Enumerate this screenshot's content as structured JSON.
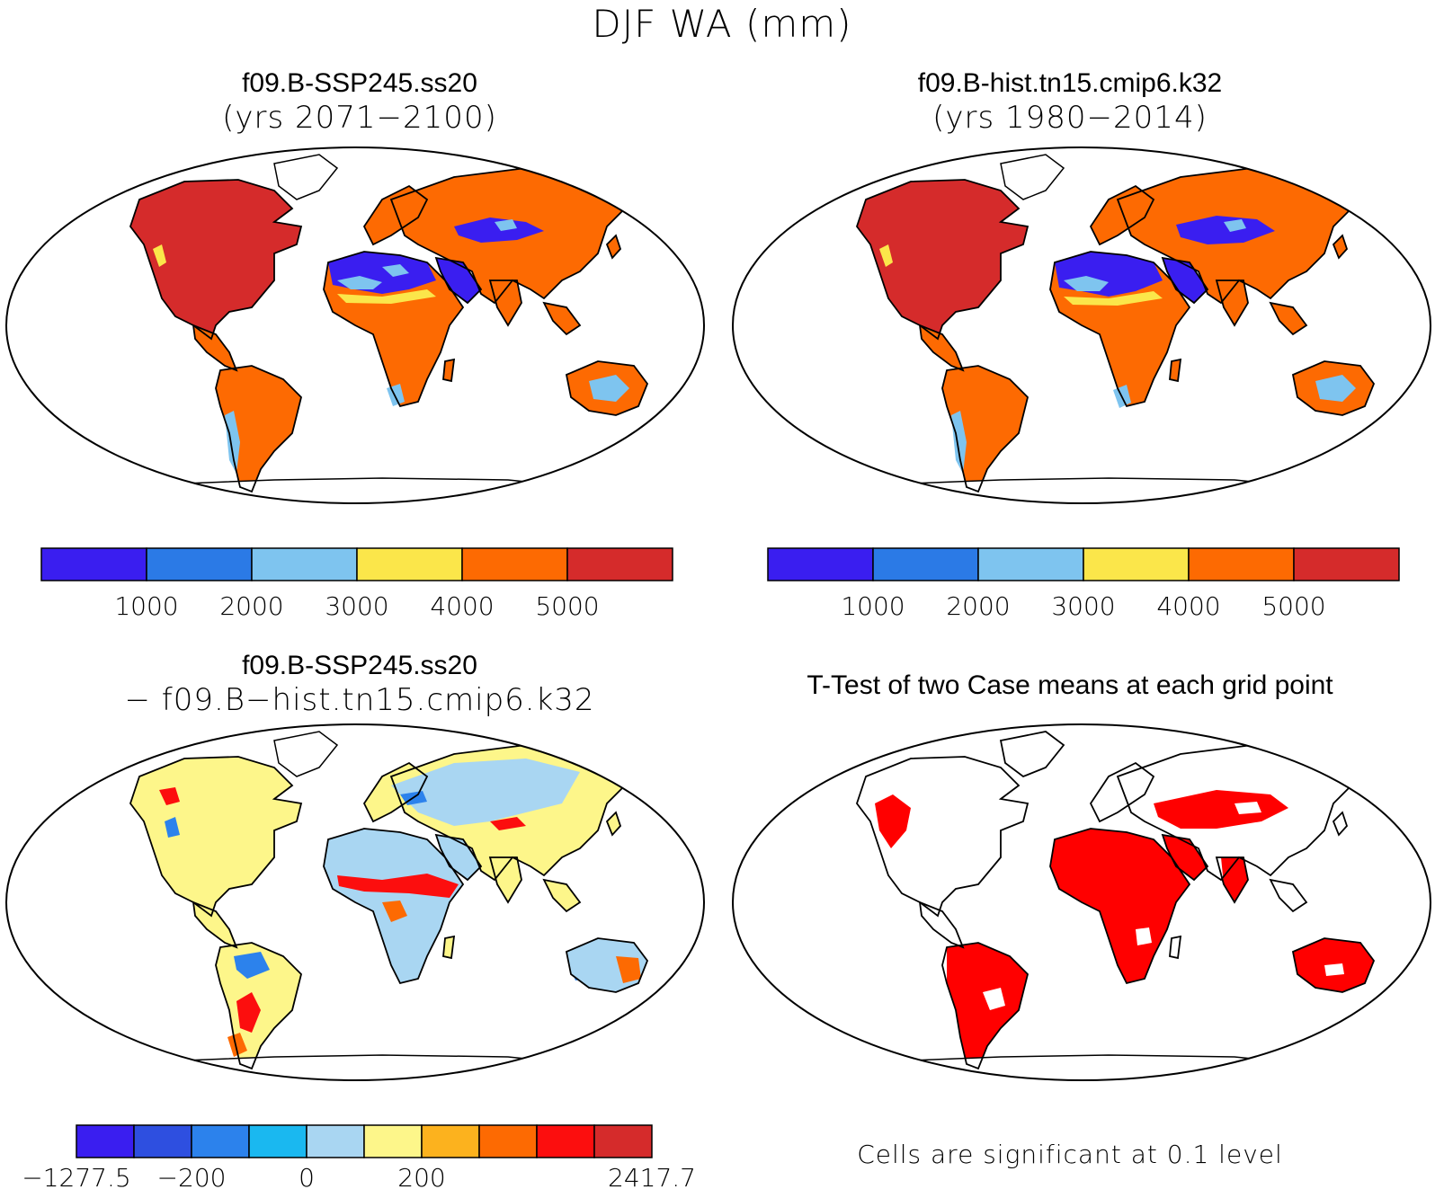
{
  "title": "DJF WA (mm)",
  "panels": [
    {
      "id": "future",
      "title": "f09.B-SSP245.ss20",
      "subtitle": "(yrs 2071−2100)"
    },
    {
      "id": "hist",
      "title": "f09.B-hist.tn15.cmip6.k32",
      "subtitle": "(yrs 1980−2014)"
    },
    {
      "id": "diff",
      "title": "f09.B-SSP245.ss20",
      "subtitle": "− f09.B−hist.tn15.cmip6.k32"
    },
    {
      "id": "ttest",
      "title": "T-Test of two Case means at each grid point",
      "note": "Cells are significant at 0.1 level"
    }
  ],
  "colorbar_abs": {
    "colors": [
      "#3a1ef0",
      "#2b7ae6",
      "#7ec4ef",
      "#fbe64a",
      "#fd6a02",
      "#d52b2b"
    ],
    "labels": [
      "1000",
      "2000",
      "3000",
      "4000",
      "5000"
    ]
  },
  "colorbar_diff": {
    "colors": [
      "#3a1ef0",
      "#2e4fe0",
      "#2c82ec",
      "#1ab8f0",
      "#a9d6f2",
      "#fdf68a",
      "#fcb21e",
      "#fd6a02",
      "#fc0e0e",
      "#d52b2b"
    ],
    "labels": [
      "−1277.5",
      "",
      "−200",
      "",
      "0",
      "",
      "200",
      "",
      "",
      "2417.7"
    ]
  },
  "legend_colors": {
    "significant": "#ff0000",
    "ocean": "#ffffff",
    "coast": "#000000"
  }
}
